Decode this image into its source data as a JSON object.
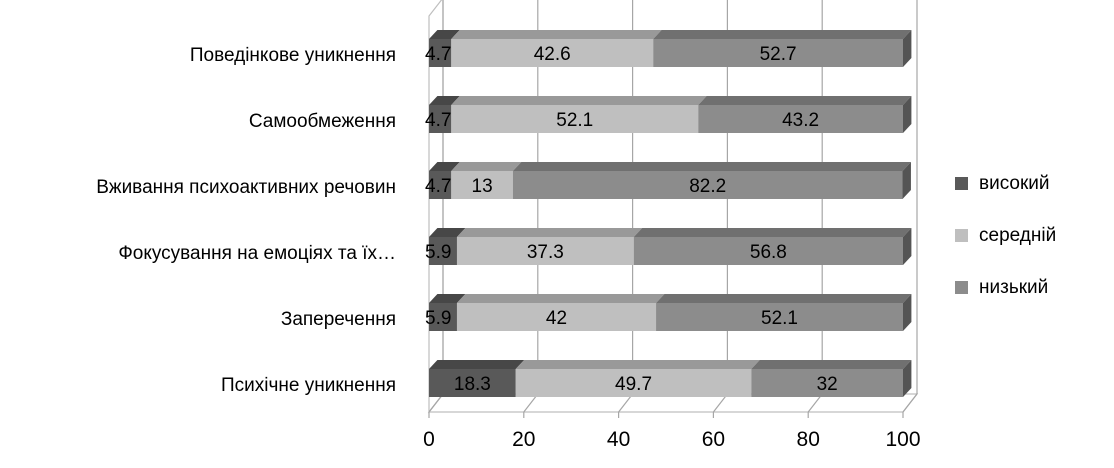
{
  "chart_data": {
    "type": "bar",
    "orientation": "horizontal",
    "stacked": true,
    "three_d": true,
    "categories": [
      "Поведінкове уникнення",
      "Самообмеження",
      "Вживання психоактивних речовин",
      "Фокусування на емоціях та їх…",
      "Заперечення",
      "Психічне уникнення"
    ],
    "series": [
      {
        "name": "високий",
        "color": "#595959",
        "values": [
          4.7,
          4.7,
          4.7,
          5.9,
          5.9,
          18.3
        ]
      },
      {
        "name": "середній",
        "color": "#bfbfbf",
        "values": [
          42.6,
          52.1,
          13,
          37.3,
          42,
          49.7
        ]
      },
      {
        "name": "низький",
        "color": "#8c8c8c",
        "values": [
          52.7,
          43.2,
          82.2,
          56.8,
          52.1,
          32
        ]
      }
    ],
    "data_labels": [
      [
        "4.7",
        "42.6",
        "52.7"
      ],
      [
        "4.7",
        "52.1",
        "43.2"
      ],
      [
        "4.7",
        "13",
        "82.2"
      ],
      [
        "5.9",
        "37.3",
        "56.8"
      ],
      [
        "5.9",
        "42",
        "52.1"
      ],
      [
        "18.3",
        "49.7",
        "32"
      ]
    ],
    "xlim": [
      0,
      100
    ],
    "xticks": [
      "0",
      "20",
      "40",
      "60",
      "80",
      "100"
    ],
    "grid": true,
    "legend_position": "right",
    "title": "",
    "xlabel": "",
    "ylabel": ""
  }
}
